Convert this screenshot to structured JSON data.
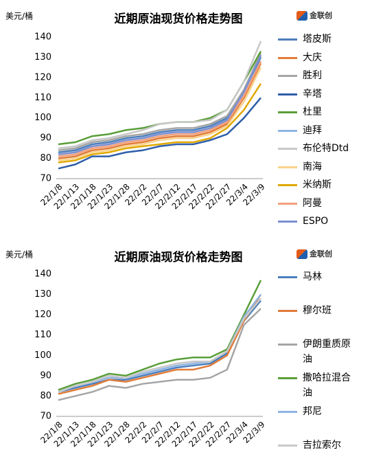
{
  "chart_data": [
    {
      "type": "line",
      "title": "近期原油现货价格走势图",
      "y_label": "美元/桶",
      "logo": "金联创",
      "categories": [
        "22/1/8",
        "22/1/13",
        "22/1/18",
        "22/1/23",
        "22/1/28",
        "22/2/2",
        "22/2/7",
        "22/2/12",
        "22/2/17",
        "22/2/22",
        "22/2/27",
        "22/3/4",
        "22/3/9"
      ],
      "ylim": [
        70,
        140
      ],
      "yticks": [
        70,
        80,
        90,
        100,
        110,
        120,
        130,
        140
      ],
      "grid": false,
      "series": [
        {
          "name": "塔皮斯",
          "color": "#4a7ebb",
          "values": [
            83,
            84,
            87,
            88,
            90,
            91,
            93,
            94,
            94,
            96,
            100,
            113,
            130
          ]
        },
        {
          "name": "大庆",
          "color": "#e07b39",
          "values": [
            80,
            81,
            84,
            85,
            87,
            88,
            90,
            91,
            91,
            93,
            97,
            110,
            127
          ]
        },
        {
          "name": "胜利",
          "color": "#a5a5a5",
          "values": [
            84,
            85,
            88,
            89,
            91,
            92,
            94,
            95,
            95,
            97,
            101,
            114,
            132
          ]
        },
        {
          "name": "辛塔",
          "color": "#2f5ea8",
          "values": [
            75,
            77,
            81,
            81,
            83,
            84,
            86,
            87,
            87,
            89,
            92,
            100,
            110
          ]
        },
        {
          "name": "杜里",
          "color": "#5a9e3a",
          "values": [
            87,
            88,
            91,
            92,
            94,
            95,
            97,
            98,
            98,
            100,
            104,
            118,
            133
          ]
        },
        {
          "name": "迪拜",
          "color": "#8fb4e3",
          "values": [
            82,
            83,
            86,
            87,
            89,
            90,
            92,
            93,
            93,
            95,
            98,
            112,
            128
          ]
        },
        {
          "name": "布伦特Dtd",
          "color": "#c8c8c8",
          "values": [
            85,
            86,
            89,
            90,
            92,
            94,
            97,
            98,
            98,
            99,
            104,
            118,
            138
          ]
        },
        {
          "name": "南海",
          "color": "#fbd38d",
          "values": [
            79,
            80,
            83,
            84,
            86,
            87,
            89,
            90,
            90,
            92,
            96,
            108,
            125
          ]
        },
        {
          "name": "米纳斯",
          "color": "#e0a800",
          "values": [
            78,
            79,
            82,
            83,
            85,
            86,
            87,
            88,
            88,
            90,
            95,
            104,
            117
          ]
        },
        {
          "name": "阿曼",
          "color": "#f2a07b",
          "values": [
            81,
            82,
            85,
            86,
            88,
            89,
            91,
            92,
            92,
            94,
            98,
            111,
            128
          ]
        },
        {
          "name": "ESPO",
          "color": "#7b8fd1",
          "values": [
            82,
            83,
            86,
            87,
            89,
            90,
            92,
            93,
            93,
            95,
            99,
            113,
            131
          ]
        }
      ]
    },
    {
      "type": "line",
      "title": "近期原油现货价格走势图",
      "y_label": "美元/桶",
      "logo": "金联创",
      "categories": [
        "22/1/8",
        "22/1/13",
        "22/1/18",
        "22/1/23",
        "22/1/28",
        "22/2/2",
        "22/2/7",
        "22/2/12",
        "22/2/17",
        "22/2/22",
        "22/2/27",
        "22/3/4",
        "22/3/9"
      ],
      "ylim": [
        70,
        140
      ],
      "yticks": [
        70,
        80,
        90,
        100,
        110,
        120,
        130,
        140
      ],
      "grid": false,
      "series": [
        {
          "name": "马林",
          "color": "#4a7ebb",
          "values": [
            82,
            84,
            86,
            88,
            88,
            90,
            92,
            94,
            95,
            96,
            101,
            117,
            127
          ]
        },
        {
          "name": "穆尔班",
          "color": "#e07b39",
          "values": [
            81,
            83,
            85,
            88,
            87,
            89,
            91,
            93,
            93,
            95,
            100,
            117,
            130
          ]
        },
        {
          "name": "伊朗重质原油",
          "color": "#a5a5a5",
          "values": [
            78,
            80,
            82,
            85,
            84,
            86,
            87,
            88,
            88,
            89,
            93,
            115,
            123
          ]
        },
        {
          "name": "撒哈拉混合油",
          "color": "#5a9e3a",
          "values": [
            83,
            86,
            88,
            91,
            90,
            93,
            96,
            98,
            99,
            99,
            103,
            120,
            137
          ]
        },
        {
          "name": "邦尼",
          "color": "#8fb4e3",
          "values": [
            82,
            85,
            87,
            89,
            89,
            91,
            93,
            95,
            96,
            97,
            102,
            119,
            130
          ]
        },
        {
          "name": "吉拉索尔",
          "color": "#c8c8c8",
          "values": [
            82,
            85,
            87,
            90,
            89,
            92,
            94,
            96,
            97,
            97,
            102,
            118,
            128
          ]
        }
      ]
    }
  ]
}
